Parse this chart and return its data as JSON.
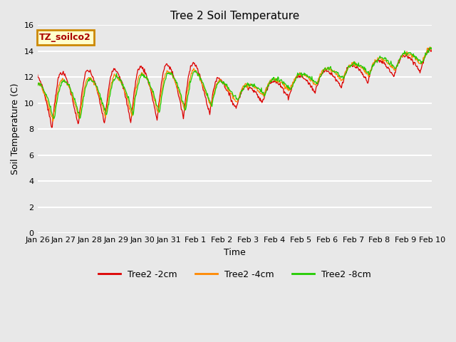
{
  "title": "Tree 2 Soil Temperature",
  "xlabel": "Time",
  "ylabel": "Soil Temperature (C)",
  "ylim": [
    0,
    16
  ],
  "yticks": [
    0,
    2,
    4,
    6,
    8,
    10,
    12,
    14,
    16
  ],
  "annotation_text": "TZ_soilco2",
  "annotation_bg": "#ffffcc",
  "annotation_border": "#cc8800",
  "annotation_text_color": "#aa0000",
  "plot_bg": "#e8e8e8",
  "fig_bg": "#e8e8e8",
  "grid_color": "#ffffff",
  "series_colors": [
    "#dd0000",
    "#ff8800",
    "#22cc00"
  ],
  "series_labels": [
    "Tree2 -2cm",
    "Tree2 -4cm",
    "Tree2 -8cm"
  ],
  "xtick_labels": [
    "Jan 26",
    "Jan 27",
    "Jan 28",
    "Jan 29",
    "Jan 30",
    "Jan 31",
    "Feb 1",
    "Feb 2",
    "Feb 3",
    "Feb 4",
    "Feb 5",
    "Feb 6",
    "Feb 7",
    "Feb 8",
    "Feb 9",
    "Feb 10"
  ],
  "num_days": 15,
  "points_per_day": 48,
  "linewidth": 0.9
}
